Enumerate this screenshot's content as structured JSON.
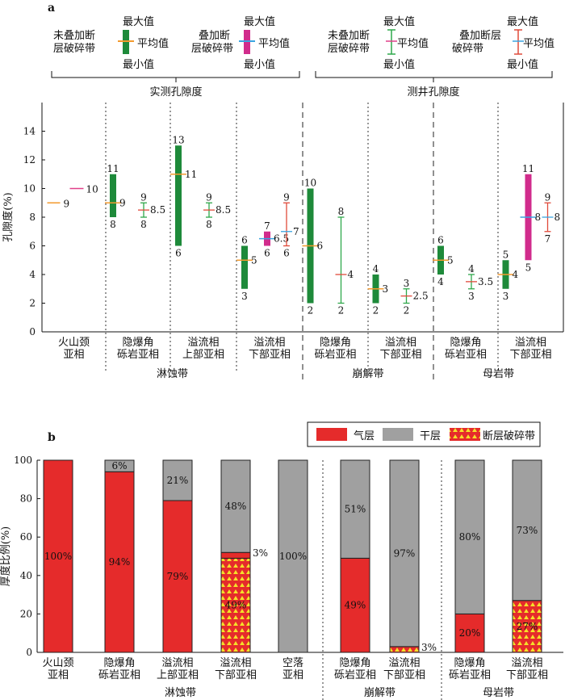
{
  "colors": {
    "gas": "#e52b2b",
    "dry": "#a0a0a0",
    "fault_fill": "#f4e12a",
    "fault_dot": "#f4e12a",
    "green_bar": "#1e8a3a",
    "magenta_bar": "#d12c8c",
    "orange_mark": "#f39a2e",
    "cyan_mark": "#3aa4e0",
    "green_line": "#2ea84a",
    "red_line": "#e04a3a",
    "pink_mark": "#e0408a"
  },
  "panel_a": {
    "tag": "a",
    "legend": {
      "not_faulted": "未叠加断层破碎带",
      "faulted": "叠加断层破碎带",
      "max": "最大值",
      "avg": "平均值",
      "min": "最小值",
      "measured_group": "实测孔隙度",
      "log_group": "测井孔隙度"
    },
    "chart_data": {
      "type": "range",
      "ylabel": "孔隙度(%)",
      "ylim": [
        0,
        16
      ],
      "yticks": [
        0,
        2,
        4,
        6,
        8,
        10,
        12,
        14
      ],
      "categories": [
        {
          "lines": [
            "火山颈",
            "亚相"
          ]
        },
        {
          "lines": [
            "隐爆角",
            "砾岩亚相"
          ]
        },
        {
          "lines": [
            "溢流相",
            "上部亚相"
          ]
        },
        {
          "lines": [
            "溢流相",
            "下部亚相"
          ]
        },
        {
          "lines": [
            "隐爆角",
            "砾岩亚相"
          ]
        },
        {
          "lines": [
            "溢流相",
            "下部亚相"
          ]
        },
        {
          "lines": [
            "隐爆角",
            "砾岩亚相"
          ]
        },
        {
          "lines": [
            "溢流相",
            "下部亚相"
          ]
        }
      ],
      "zones": [
        {
          "label": "淋蚀带",
          "from": 0,
          "to": 3
        },
        {
          "label": "崩解带",
          "from": 4,
          "to": 5
        },
        {
          "label": "母岩带",
          "from": 6,
          "to": 7
        }
      ],
      "series": [
        {
          "cat": 0,
          "kind": "mean-only",
          "method": "measured",
          "fault": false,
          "mean": 9,
          "label": "9"
        },
        {
          "cat": 0,
          "kind": "mean-only",
          "method": "measured",
          "fault": true,
          "mean": 10,
          "label": "10"
        },
        {
          "cat": 1,
          "kind": "bar",
          "method": "measured",
          "fault": false,
          "min": 8,
          "max": 11,
          "mean": 9
        },
        {
          "cat": 1,
          "kind": "whisker",
          "method": "log",
          "fault": false,
          "min": 8,
          "max": 9,
          "mean": 8.5
        },
        {
          "cat": 2,
          "kind": "bar",
          "method": "measured",
          "fault": false,
          "min": 6,
          "max": 13,
          "mean": 11
        },
        {
          "cat": 2,
          "kind": "whisker",
          "method": "log",
          "fault": false,
          "min": 8,
          "max": 9,
          "mean": 8.5
        },
        {
          "cat": 3,
          "kind": "bar",
          "method": "measured",
          "fault": false,
          "min": 3,
          "max": 6,
          "mean": 5
        },
        {
          "cat": 3,
          "kind": "bar",
          "method": "measured",
          "fault": true,
          "min": 6,
          "max": 7,
          "mean": 6.5
        },
        {
          "cat": 3,
          "kind": "whisker",
          "method": "log",
          "fault": true,
          "min": 6,
          "max": 9,
          "mean": 7
        },
        {
          "cat": 4,
          "kind": "bar",
          "method": "measured",
          "fault": false,
          "min": 2,
          "max": 10,
          "mean": 6
        },
        {
          "cat": 4,
          "kind": "whisker",
          "method": "log",
          "fault": false,
          "min": 2,
          "max": 8,
          "mean": 4
        },
        {
          "cat": 5,
          "kind": "bar",
          "method": "measured",
          "fault": false,
          "min": 2,
          "max": 4,
          "mean": 3
        },
        {
          "cat": 5,
          "kind": "whisker",
          "method": "log",
          "fault": false,
          "min": 2,
          "max": 3,
          "mean": 2.5
        },
        {
          "cat": 6,
          "kind": "bar",
          "method": "measured",
          "fault": false,
          "min": 4,
          "max": 6,
          "mean": 5
        },
        {
          "cat": 6,
          "kind": "whisker",
          "method": "log",
          "fault": false,
          "min": 3,
          "max": 4,
          "mean": 3.5
        },
        {
          "cat": 7,
          "kind": "bar",
          "method": "measured",
          "fault": false,
          "min": 3,
          "max": 5,
          "mean": 4
        },
        {
          "cat": 7,
          "kind": "bar",
          "method": "measured",
          "fault": true,
          "min": 5,
          "max": 11,
          "mean": 8
        },
        {
          "cat": 7,
          "kind": "whisker",
          "method": "log",
          "fault": true,
          "min": 7,
          "max": 9,
          "mean": 8
        }
      ]
    }
  },
  "panel_b": {
    "tag": "b",
    "legend": {
      "gas": "气层",
      "dry": "干层",
      "fault": "断层破碎带"
    },
    "chart_data": {
      "type": "bar",
      "stacked": true,
      "ylabel": "厚度比例(%)",
      "ylim": [
        0,
        100
      ],
      "yticks": [
        0,
        20,
        40,
        60,
        80,
        100
      ],
      "categories": [
        {
          "lines": [
            "火山颈",
            "亚相"
          ]
        },
        {
          "lines": [
            "隐爆角",
            "砾岩亚相"
          ]
        },
        {
          "lines": [
            "溢流相",
            "上部亚相"
          ]
        },
        {
          "lines": [
            "溢流相",
            "下部亚相"
          ]
        },
        {
          "lines": [
            "空落",
            "亚相"
          ]
        },
        {
          "lines": [
            "隐爆角",
            "砾岩亚相"
          ]
        },
        {
          "lines": [
            "溢流相",
            "下部亚相"
          ]
        },
        {
          "lines": [
            "隐爆角",
            "砾岩亚相"
          ]
        },
        {
          "lines": [
            "溢流相",
            "下部亚相"
          ]
        }
      ],
      "zones": [
        {
          "label": "淋蚀带",
          "from": 0,
          "to": 4
        },
        {
          "label": "崩解带",
          "from": 5,
          "to": 6
        },
        {
          "label": "母岩带",
          "from": 7,
          "to": 8
        }
      ],
      "series": [
        {
          "name": "断层破碎带",
          "values": [
            0,
            0,
            0,
            49,
            0,
            0,
            3,
            0,
            27
          ]
        },
        {
          "name": "气层",
          "values": [
            100,
            94,
            79,
            3,
            0,
            49,
            0,
            20,
            0
          ]
        },
        {
          "name": "干层",
          "values": [
            0,
            6,
            21,
            48,
            100,
            51,
            97,
            80,
            73
          ]
        }
      ],
      "labels": [
        [
          "100%"
        ],
        [
          "94%",
          "6%"
        ],
        [
          "79%",
          "21%"
        ],
        [
          "49%",
          "3%",
          "48%"
        ],
        [
          "100%"
        ],
        [
          "49%",
          "51%"
        ],
        [
          "3%",
          "97%"
        ],
        [
          "20%",
          "80%"
        ],
        [
          "27%",
          "73%"
        ]
      ]
    }
  }
}
